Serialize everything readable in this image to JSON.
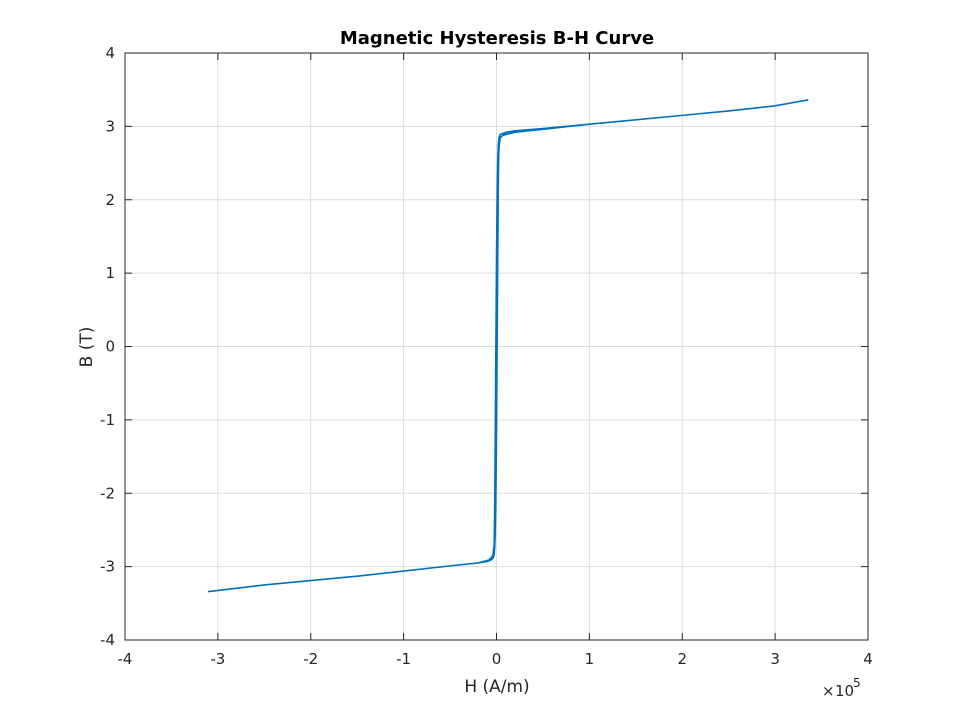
{
  "chart_data": {
    "type": "line",
    "title": "Magnetic Hysteresis B-H Curve",
    "xlabel": "H (A/m)",
    "ylabel": "B (T)",
    "xlim": [
      -400000,
      400000
    ],
    "ylim": [
      -4,
      4
    ],
    "x_tick_labels": [
      "-4",
      "-3",
      "-2",
      "-1",
      "0",
      "1",
      "2",
      "3",
      "4"
    ],
    "x_tick_values": [
      -400000,
      -300000,
      -200000,
      -100000,
      0,
      100000,
      200000,
      300000,
      400000
    ],
    "y_tick_labels": [
      "4",
      "3",
      "2",
      "1",
      "0",
      "-1",
      "-2",
      "-3",
      "-4"
    ],
    "y_tick_values": [
      4,
      3,
      2,
      1,
      0,
      -1,
      -2,
      -3,
      -4
    ],
    "x_exponent": {
      "base": "10",
      "power": "5"
    },
    "grid": true,
    "series": [
      {
        "color": "#0072BD",
        "x": [
          0,
          400,
          800,
          1200,
          1600,
          2000,
          2500,
          3000,
          4000,
          6000,
          10000,
          20000,
          50000,
          100000,
          150000,
          200000,
          250000,
          300000,
          335000,
          300000,
          250000,
          200000,
          150000,
          100000,
          50000,
          20000,
          8000,
          4000,
          2500,
          2000,
          1500,
          1000,
          500,
          0,
          -500,
          -1000,
          -1500,
          -2000,
          -2500,
          -3000,
          -4000,
          -6000,
          -10000,
          -20000,
          -50000,
          -100000,
          -150000,
          -200000,
          -250000,
          -310000,
          -250000,
          -200000,
          -150000,
          -100000,
          -50000,
          -20000,
          -8000,
          -4000,
          -2500,
          -2000,
          -1500,
          -1000,
          -500,
          0,
          500,
          1000,
          1500,
          2000,
          2500,
          3000,
          4000,
          6000,
          10000,
          20000,
          50000,
          100000,
          150000,
          200000,
          250000,
          300000,
          335000
        ],
        "y": [
          0,
          0.5,
          1.0,
          1.5,
          2.0,
          2.4,
          2.65,
          2.78,
          2.84,
          2.87,
          2.89,
          2.92,
          2.96,
          3.03,
          3.09,
          3.15,
          3.21,
          3.28,
          3.36,
          3.28,
          3.21,
          3.15,
          3.09,
          3.03,
          2.96,
          2.92,
          2.89,
          2.85,
          2.7,
          2.3,
          1.5,
          0.6,
          -0.3,
          -1.2,
          -1.8,
          -2.3,
          -2.6,
          -2.75,
          -2.82,
          -2.86,
          -2.89,
          -2.91,
          -2.93,
          -2.95,
          -2.99,
          -3.06,
          -3.13,
          -3.19,
          -3.25,
          -3.34,
          -3.25,
          -3.19,
          -3.13,
          -3.06,
          -2.99,
          -2.95,
          -2.91,
          -2.85,
          -2.7,
          -2.3,
          -1.5,
          -0.6,
          0.3,
          1.2,
          1.8,
          2.3,
          2.6,
          2.75,
          2.82,
          2.86,
          2.89,
          2.9,
          2.92,
          2.94,
          2.97,
          3.03,
          3.09,
          3.15,
          3.21,
          3.28,
          3.36
        ]
      }
    ]
  }
}
